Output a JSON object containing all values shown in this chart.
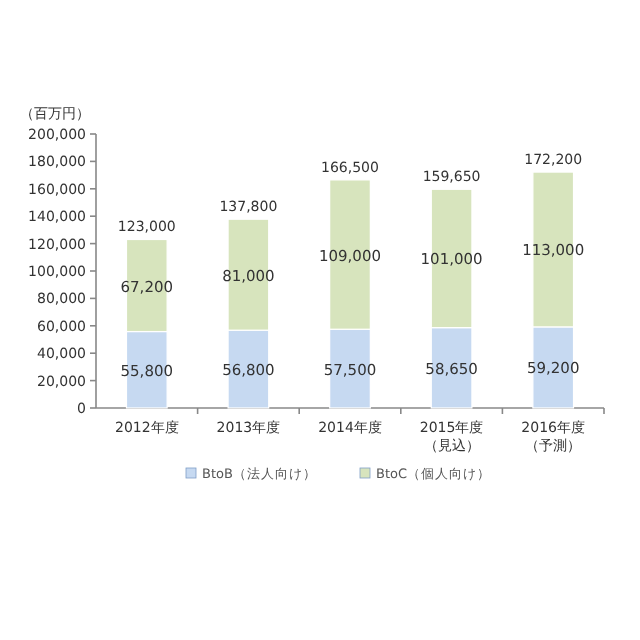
{
  "chart_data": {
    "type": "bar",
    "stacked": true,
    "ylabel": "（百万円）",
    "categories": [
      "2012年度",
      "2013年度",
      "2014年度",
      "2015年度（見込）",
      "2016年度（予測）"
    ],
    "series": [
      {
        "name": "BtoB（法人向け）",
        "color": "#c6d9f1",
        "values": [
          55800,
          56800,
          57500,
          58650,
          59200
        ],
        "value_labels": [
          "55,800",
          "56,800",
          "57,500",
          "58,650",
          "59,200"
        ]
      },
      {
        "name": "BtoC（個人向け）",
        "color": "#d7e4bd",
        "values": [
          67200,
          81000,
          109000,
          101000,
          113000
        ],
        "value_labels": [
          "67,200",
          "81,000",
          "109,000",
          "101,000",
          "113,000"
        ]
      }
    ],
    "totals": [
      "123,000",
      "137,800",
      "166,500",
      "159,650",
      "172,200"
    ],
    "legend": "bottom",
    "ylim": [
      0,
      200000
    ],
    "yticks": [
      0,
      {
        "value": 20000,
        "label": "20,000"
      },
      {
        "value": 40000,
        "label": "40,000"
      },
      {
        "value": 60000,
        "label": "60,000"
      },
      {
        "value": 80000,
        "label": "80,000"
      },
      {
        "value": 100000,
        "label": "100,000"
      },
      {
        "value": 120000,
        "label": "120,000"
      },
      {
        "value": 140000,
        "label": "140,000"
      },
      {
        "value": 160000,
        "label": "160,000"
      },
      {
        "value": 180000,
        "label": "180,000"
      },
      {
        "value": 200000,
        "label": "200,000"
      }
    ]
  }
}
